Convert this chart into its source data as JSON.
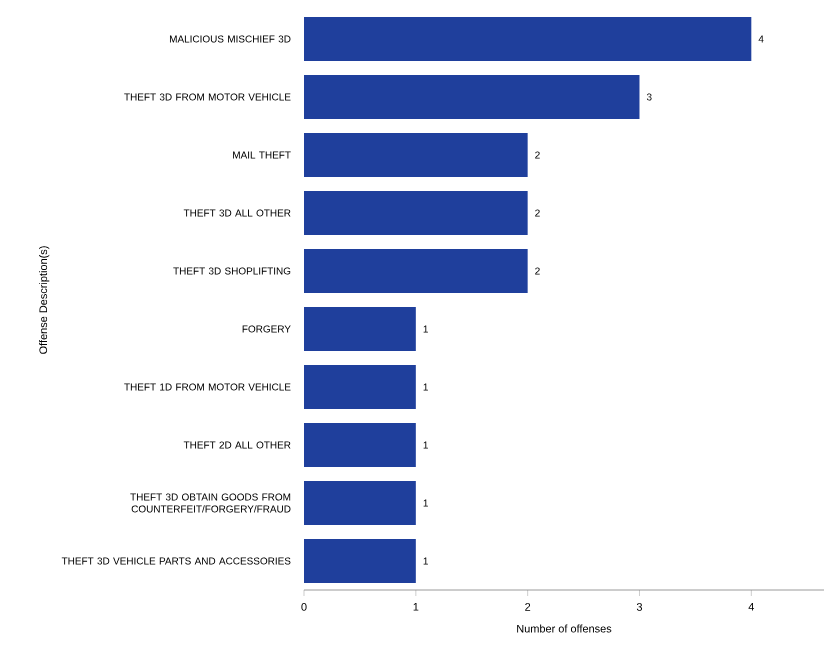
{
  "chart_data": {
    "type": "bar",
    "orientation": "horizontal",
    "ylabel": "Offense Description(s)",
    "xlabel": "Number of offenses",
    "categories": [
      "MALICIOUS MISCHIEF 3D",
      "THEFT 3D FROM MOTOR VEHICLE",
      "MAIL THEFT",
      "THEFT 3D ALL OTHER",
      "THEFT 3D SHOPLIFTING",
      "FORGERY",
      "THEFT 1D FROM MOTOR VEHICLE",
      "THEFT 2D ALL OTHER",
      "THEFT 3D OBTAIN GOODS FROM COUNTERFEIT/FORGERY/FRAUD",
      "THEFT 3D VEHICLE PARTS AND ACCESSORIES"
    ],
    "values": [
      4,
      3,
      2,
      2,
      2,
      1,
      1,
      1,
      1,
      1
    ],
    "color": "#1f3f9c",
    "data_labels": true,
    "xlim": [
      0,
      4.65
    ],
    "xticks": [
      0,
      1,
      2,
      3,
      4
    ]
  }
}
